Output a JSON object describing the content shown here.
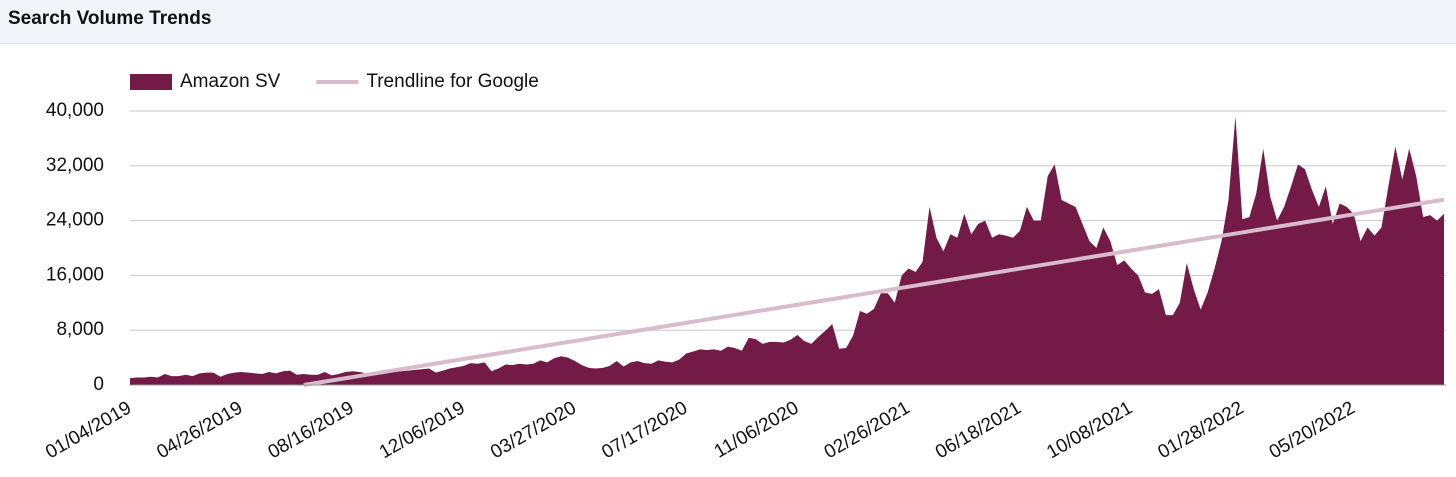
{
  "chart_data": {
    "type": "area",
    "title": "Search Volume Trends",
    "categories": [
      "01/04/2019",
      null,
      null,
      null,
      null,
      null,
      null,
      null,
      null,
      null,
      null,
      null,
      null,
      null,
      null,
      null,
      "04/26/2019",
      null,
      null,
      null,
      null,
      null,
      null,
      null,
      null,
      null,
      null,
      null,
      null,
      null,
      null,
      null,
      "08/16/2019",
      null,
      null,
      null,
      null,
      null,
      null,
      null,
      null,
      null,
      null,
      null,
      null,
      null,
      null,
      null,
      "12/06/2019",
      null,
      null,
      null,
      null,
      null,
      null,
      null,
      null,
      null,
      null,
      null,
      null,
      null,
      null,
      null,
      "03/27/2020",
      null,
      null,
      null,
      null,
      null,
      null,
      null,
      null,
      null,
      null,
      null,
      null,
      null,
      null,
      null,
      "07/17/2020",
      null,
      null,
      null,
      null,
      null,
      null,
      null,
      null,
      null,
      null,
      null,
      null,
      null,
      null,
      null,
      "11/06/2020",
      null,
      null,
      null,
      null,
      null,
      null,
      null,
      null,
      null,
      null,
      null,
      null,
      null,
      null,
      null,
      "02/26/2021",
      null,
      null,
      null,
      null,
      null,
      null,
      null,
      null,
      null,
      null,
      null,
      null,
      null,
      null,
      null,
      "06/18/2021",
      null,
      null,
      null,
      null,
      null,
      null,
      null,
      null,
      null,
      null,
      null,
      null,
      null,
      null,
      null,
      "10/08/2021",
      null,
      null,
      null,
      null,
      null,
      null,
      null,
      null,
      null,
      null,
      null,
      null,
      null,
      null,
      null,
      "01/28/2022",
      null,
      null,
      null,
      null,
      null,
      null,
      null,
      null,
      null,
      null,
      null,
      null,
      null,
      null,
      null,
      "05/20/2022",
      null,
      null,
      null,
      null,
      null,
      null,
      null,
      null,
      null,
      null,
      null,
      null,
      null
    ],
    "series": [
      {
        "name": "Amazon SV",
        "kind": "area",
        "color": "#731a47",
        "values": [
          1000,
          1100,
          1100,
          1200,
          1100,
          1600,
          1300,
          1300,
          1500,
          1300,
          1700,
          1800,
          1800,
          1200,
          1600,
          1800,
          1900,
          1800,
          1700,
          1600,
          1900,
          1700,
          2000,
          2100,
          1500,
          1600,
          1500,
          1500,
          1900,
          1400,
          1600,
          1900,
          2000,
          1900,
          1700,
          1800,
          2000,
          1900,
          2000,
          2000,
          2100,
          2200,
          2300,
          2400,
          1800,
          2100,
          2400,
          2600,
          2800,
          3200,
          3100,
          3300,
          2000,
          2400,
          3000,
          2900,
          3100,
          3000,
          3100,
          3600,
          3300,
          3900,
          4200,
          4000,
          3500,
          2900,
          2500,
          2400,
          2500,
          2800,
          3500,
          2700,
          3300,
          3500,
          3200,
          3100,
          3600,
          3400,
          3300,
          3700,
          4600,
          4900,
          5200,
          5100,
          5200,
          5000,
          5600,
          5400,
          5000,
          6900,
          6700,
          6000,
          6300,
          6300,
          6200,
          6600,
          7300,
          6400,
          6000,
          7000,
          7900,
          8900,
          5300,
          5400,
          7200,
          10800,
          10400,
          11100,
          13400,
          13400,
          12000,
          16000,
          17000,
          16500,
          18000,
          26000,
          21500,
          19500,
          22000,
          21500,
          25000,
          22000,
          23500,
          24000,
          21500,
          22000,
          21800,
          21500,
          22500,
          26000,
          24000,
          24000,
          30500,
          32200,
          27000,
          26500,
          26000,
          23500,
          21000,
          20000,
          23000,
          21000,
          17500,
          18200,
          17000,
          16000,
          13500,
          13300,
          14000,
          10200,
          10200,
          12000,
          17800,
          14000,
          11000,
          13500,
          17000,
          21000,
          27000,
          39200,
          24200,
          24500,
          28000,
          34500,
          27500,
          24000,
          26000,
          29000,
          32200,
          31500,
          28500,
          26000,
          29000,
          23500,
          26500,
          26000,
          25000,
          21000,
          23000,
          21800,
          23000,
          29000,
          34800,
          30000,
          34500,
          30500,
          24500,
          24800,
          24000,
          25000
        ]
      },
      {
        "name": "Trendline for Google",
        "kind": "line",
        "color": "#d8bccb",
        "values": [
          null,
          null,
          null,
          null,
          null,
          null,
          null,
          null,
          null,
          null,
          null,
          null,
          null,
          null,
          null,
          null,
          null,
          null,
          null,
          null,
          null,
          null,
          null,
          null,
          null,
          0,
          165,
          330,
          495,
          660,
          825,
          990,
          1155,
          1320,
          1485,
          1650,
          1815,
          1980,
          2145,
          2310,
          2475,
          2640,
          2805,
          2970,
          3135,
          3300,
          3465,
          3630,
          3795,
          3960,
          4125,
          4290,
          4455,
          4620,
          4785,
          4950,
          5115,
          5280,
          5445,
          5610,
          5775,
          5940,
          6105,
          6270,
          6435,
          6600,
          6765,
          6930,
          7095,
          7260,
          7425,
          7590,
          7755,
          7920,
          8085,
          8250,
          8415,
          8580,
          8745,
          8910,
          9075,
          9240,
          9405,
          9570,
          9735,
          9900,
          10065,
          10230,
          10395,
          10560,
          10725,
          10890,
          11055,
          11220,
          11385,
          11550,
          11715,
          11880,
          12045,
          12210,
          12375,
          12540,
          12705,
          12870,
          13035,
          13200,
          13365,
          13530,
          13695,
          13860,
          14025,
          14190,
          14355,
          14520,
          14685,
          14850,
          15015,
          15180,
          15345,
          15510,
          15675,
          15840,
          16005,
          16170,
          16335,
          16500,
          16665,
          16830,
          16995,
          17160,
          17325,
          17490,
          17655,
          17820,
          17985,
          18150,
          18315,
          18480,
          18645,
          18810,
          18975,
          19140,
          19305,
          19470,
          19635,
          19800,
          19965,
          20130,
          20295,
          20460,
          20625,
          20790,
          20955,
          21120,
          21285,
          21450,
          21615,
          21780,
          21945,
          22110,
          22275,
          22440,
          22605,
          22770,
          22935,
          23100,
          23265,
          23430,
          23595,
          23760,
          23925,
          24090,
          24255,
          24420,
          24585,
          24750,
          24915,
          25080,
          25245,
          25410,
          25575,
          25740,
          25905,
          26070,
          26235,
          26400,
          26565,
          26730,
          26895,
          27060
        ]
      }
    ],
    "ylim": [
      0,
      40000
    ],
    "yticks": [
      0,
      {
        "value": 8000,
        "label": "8,000"
      },
      {
        "value": 16000,
        "label": "16,000"
      },
      {
        "value": 24000,
        "label": "24,000"
      },
      {
        "value": 32000,
        "label": "32,000"
      },
      {
        "value": 40000,
        "label": "40,000"
      }
    ],
    "grid": true,
    "legend": "top-left"
  }
}
